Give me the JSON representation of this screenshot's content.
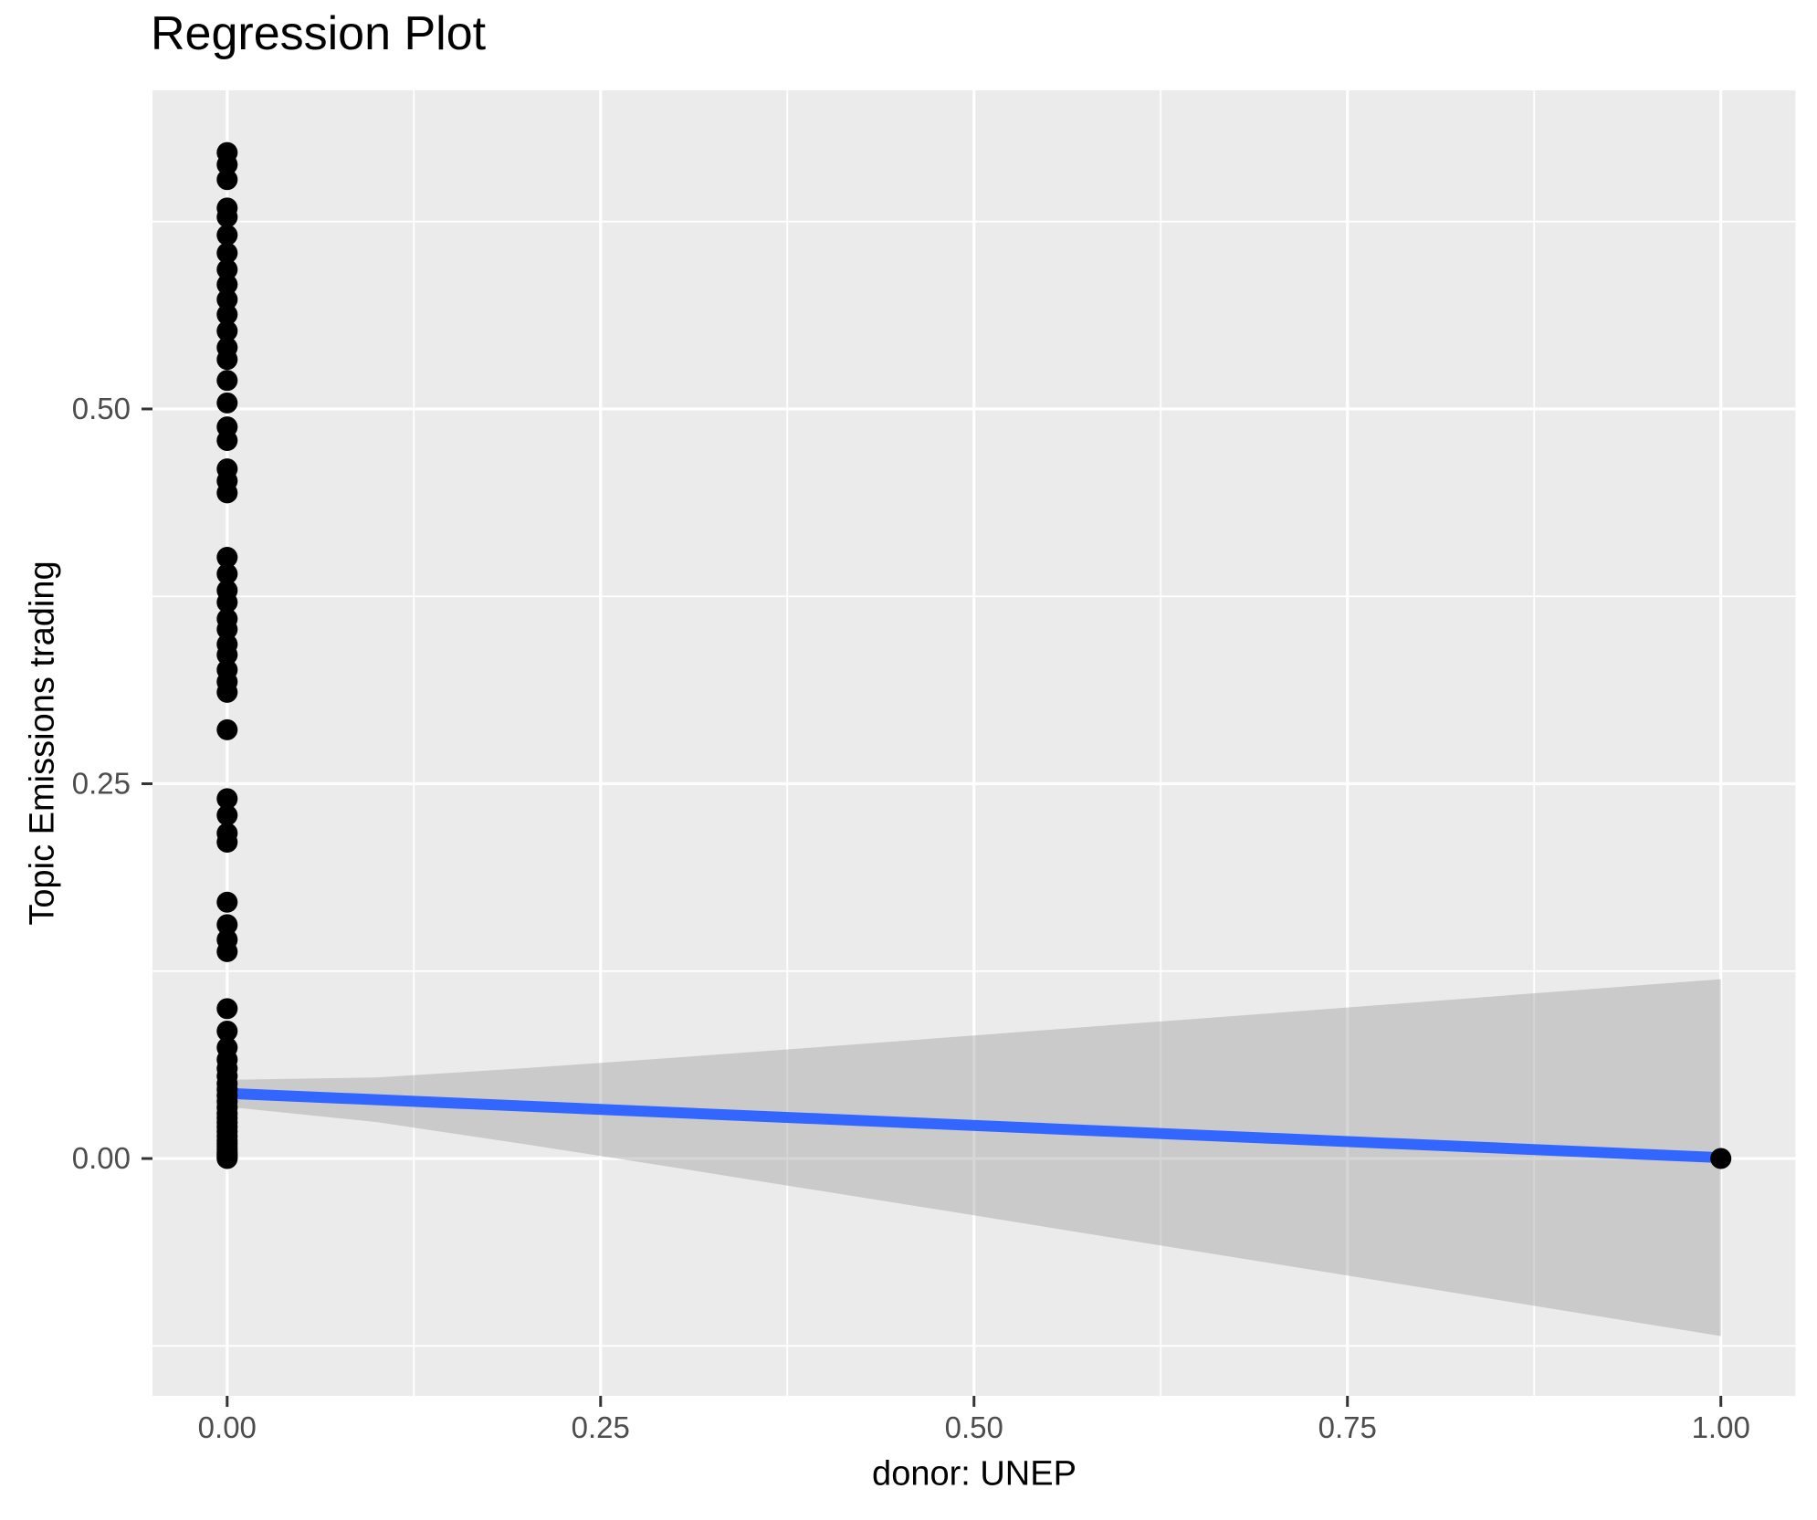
{
  "chart_data": {
    "type": "scatter",
    "title": "Regression Plot",
    "xlabel": "donor: UNEP",
    "ylabel": "Topic Emissions trading",
    "x_range": [
      -0.05,
      1.05
    ],
    "y_range": [
      -0.1583,
      0.7125
    ],
    "grid": "on",
    "x_ticks": {
      "values": [
        0.0,
        0.25,
        0.5,
        0.75,
        1.0
      ],
      "labels": [
        "0.00",
        "0.25",
        "0.50",
        "0.75",
        "1.00"
      ]
    },
    "y_ticks": {
      "values": [
        0.0,
        0.25,
        0.5
      ],
      "labels": [
        "0.00",
        "0.25",
        "0.50"
      ]
    },
    "x_minor_ticks": [
      0.125,
      0.375,
      0.625,
      0.875
    ],
    "y_minor_ticks": [
      -0.125,
      0.125,
      0.375,
      0.625
    ],
    "scatter": {
      "stack_x0": {
        "x": 0.0,
        "y_values": [
          0.671,
          0.663,
          0.653,
          0.634,
          0.628,
          0.616,
          0.604,
          0.593,
          0.583,
          0.573,
          0.563,
          0.552,
          0.541,
          0.533,
          0.519,
          0.504,
          0.488,
          0.479,
          0.46,
          0.452,
          0.444,
          0.401,
          0.39,
          0.379,
          0.371,
          0.36,
          0.353,
          0.343,
          0.336,
          0.326,
          0.318,
          0.311,
          0.286,
          0.24,
          0.229,
          0.217,
          0.211,
          0.171,
          0.156,
          0.146,
          0.138,
          0.1,
          0.085,
          0.074,
          0.066,
          0.06,
          0.055,
          0.05,
          0.046,
          0.042,
          0.038,
          0.034,
          0.03,
          0.027,
          0.024,
          0.021,
          0.018,
          0.015,
          0.012,
          0.01,
          0.008,
          0.006,
          0.004,
          0.003,
          0.002,
          0.001,
          0.0
        ]
      },
      "single_points": [
        [
          1.0,
          0.0
        ]
      ]
    },
    "regression_line": {
      "endpoints": [
        [
          0.0,
          0.0435
        ],
        [
          1.0,
          0.0006
        ]
      ],
      "color": "#3366FF"
    },
    "confidence_band": {
      "x": [
        0.0,
        0.1,
        0.2,
        0.3,
        0.4,
        0.5,
        0.6,
        0.7,
        0.8,
        0.9,
        1.0
      ],
      "upper": [
        0.0525,
        0.0541,
        0.0603,
        0.0673,
        0.0746,
        0.0821,
        0.0896,
        0.097,
        0.1045,
        0.1121,
        0.1196
      ],
      "lower": [
        0.0345,
        0.0243,
        0.0095,
        -0.0061,
        -0.022,
        -0.0379,
        -0.054,
        -0.07,
        -0.0861,
        -0.1023,
        -0.1184
      ],
      "fill": "#999999",
      "opacity": 0.4,
      "flattened_over_panel": "#CACACA"
    },
    "style": {
      "panel_background": "#EBEBEB",
      "gridline_color": "#FFFFFF",
      "point_color": "#000000",
      "point_radius": 11.5,
      "line_width": 12,
      "major_grid_width": 3.2,
      "minor_grid_width": 1.8,
      "tick_label_color": "#4D4D4D",
      "tick_mark_color": "#333333",
      "tick_label_font_size": 33,
      "title_color": "#000000"
    }
  }
}
